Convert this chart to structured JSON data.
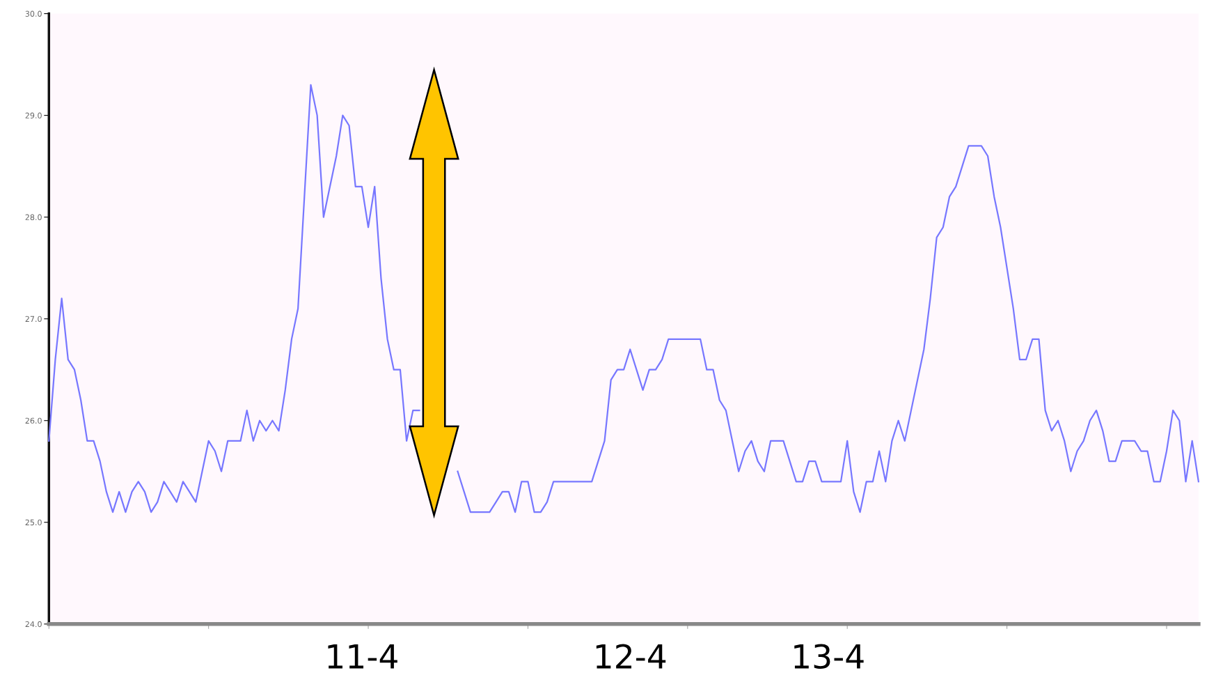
{
  "chart_data": {
    "type": "line",
    "categories": [
      null,
      null,
      null,
      null,
      null,
      null,
      null,
      null,
      null,
      null,
      null,
      null,
      null,
      null,
      null,
      null,
      null,
      null,
      null,
      null,
      null,
      null,
      null,
      null,
      null,
      null,
      null,
      null,
      null,
      null,
      null,
      null,
      null,
      null,
      null,
      null,
      null,
      null,
      null,
      null,
      null,
      null,
      null,
      null,
      null,
      null,
      null,
      null,
      null,
      "11-4",
      null,
      null,
      null,
      null,
      null,
      null,
      null,
      null,
      null,
      null,
      null,
      null,
      null,
      null,
      null,
      null,
      null,
      null,
      null,
      null,
      null,
      null,
      null,
      null,
      null,
      null,
      null,
      null,
      null,
      null,
      null,
      null,
      null,
      null,
      null,
      null,
      null,
      null,
      null,
      null,
      null,
      "12-4",
      null,
      null,
      null,
      null,
      null,
      null,
      null,
      null,
      null,
      null,
      null,
      null,
      null,
      null,
      null,
      null,
      null,
      null,
      null,
      null,
      null,
      null,
      null,
      null,
      null,
      null,
      null,
      null,
      null,
      null,
      "13-4",
      null,
      null,
      null,
      null,
      null,
      null,
      null,
      null,
      null,
      null,
      null,
      null,
      null,
      null,
      null,
      null,
      null,
      null,
      null,
      null,
      null,
      null,
      null,
      null,
      null,
      null,
      null,
      null,
      null,
      null,
      null,
      null,
      null,
      null,
      null,
      null,
      null,
      null,
      null,
      null,
      null,
      null,
      null,
      null,
      null,
      null,
      null,
      null,
      null,
      null,
      null,
      null,
      null,
      null,
      null,
      null,
      null,
      null
    ],
    "series": [
      {
        "color": "#7777ff",
        "values": [
          25.8,
          26.6,
          27.2,
          26.6,
          26.5,
          26.2,
          25.8,
          25.8,
          25.6,
          25.3,
          25.1,
          25.3,
          25.1,
          25.3,
          25.4,
          25.3,
          25.1,
          25.2,
          25.4,
          25.3,
          25.2,
          25.4,
          25.3,
          25.2,
          25.5,
          25.8,
          25.7,
          25.5,
          25.8,
          25.8,
          25.8,
          26.1,
          25.8,
          26.0,
          25.9,
          26.0,
          25.9,
          26.3,
          26.8,
          27.1,
          28.2,
          29.3,
          29.0,
          28.0,
          28.3,
          28.6,
          29.0,
          28.9,
          28.3,
          28.3,
          27.9,
          28.3,
          27.4,
          26.8,
          26.5,
          26.5,
          25.8,
          26.1,
          26.1,
          null,
          null,
          null,
          null,
          null,
          25.5,
          25.3,
          25.1,
          25.1,
          25.1,
          25.1,
          25.2,
          25.3,
          25.3,
          25.1,
          25.4,
          25.4,
          25.1,
          25.1,
          25.2,
          25.4,
          25.4,
          25.4,
          25.4,
          25.4,
          25.4,
          25.4,
          25.6,
          25.8,
          26.4,
          26.5,
          26.5,
          26.7,
          26.5,
          26.3,
          26.5,
          26.5,
          26.6,
          26.8,
          26.8,
          26.8,
          26.8,
          26.8,
          26.8,
          26.5,
          26.5,
          26.2,
          26.1,
          25.8,
          25.5,
          25.7,
          25.8,
          25.6,
          25.5,
          25.8,
          25.8,
          25.8,
          25.6,
          25.4,
          25.4,
          25.6,
          25.6,
          25.4,
          25.4,
          25.4,
          25.4,
          25.8,
          25.3,
          25.1,
          25.4,
          25.4,
          25.7,
          25.4,
          25.8,
          26.0,
          25.8,
          26.1,
          26.4,
          26.7,
          27.2,
          27.8,
          27.9,
          28.2,
          28.3,
          28.5,
          28.7,
          28.7,
          28.7,
          28.6,
          28.2,
          27.9,
          27.5,
          27.1,
          26.6,
          26.6,
          26.8,
          26.8,
          26.1,
          25.9,
          26.0,
          25.8,
          25.5,
          25.7,
          25.8,
          26.0,
          26.1,
          25.9,
          25.6,
          25.6,
          25.8,
          25.8,
          25.8,
          25.7,
          25.7,
          25.4,
          25.4,
          25.7,
          26.1,
          26.0,
          25.4,
          25.8,
          25.4
        ]
      }
    ],
    "ylim": [
      24,
      30
    ],
    "yticks": [
      {
        "value": 24,
        "label": "24.0"
      },
      {
        "value": 25,
        "label": "25.0"
      },
      {
        "value": 26,
        "label": "26.0"
      },
      {
        "value": 27,
        "label": "27.0"
      },
      {
        "value": 28,
        "label": "28.0"
      },
      {
        "value": 29,
        "label": "29.0"
      },
      {
        "value": 30,
        "label": "30.0"
      }
    ],
    "grid": false,
    "legend": false,
    "marker": "none",
    "line_style": "solid"
  }
}
